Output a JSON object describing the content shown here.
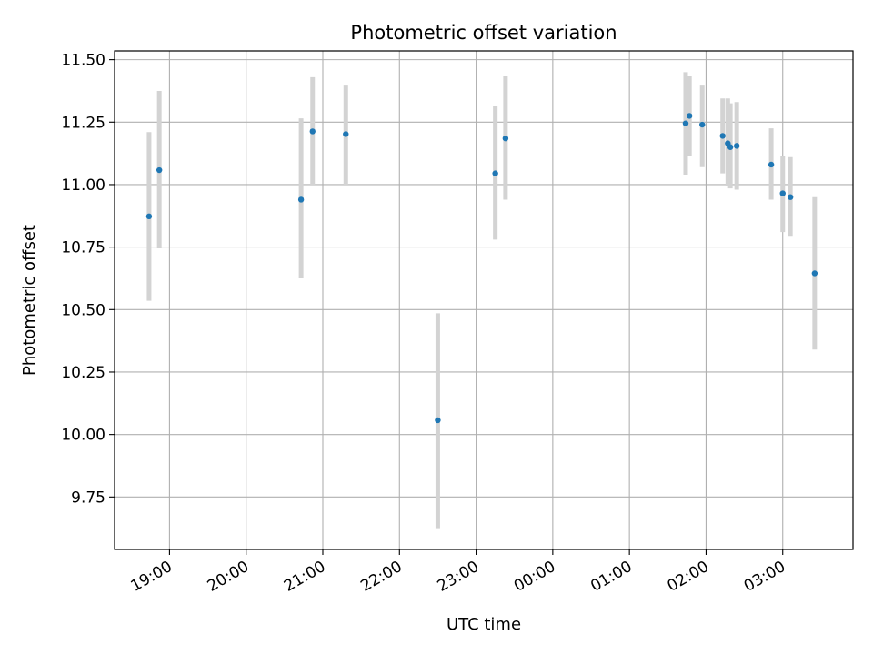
{
  "chart_data": {
    "type": "scatter",
    "title": "Photometric offset variation",
    "xlabel": "UTC time",
    "ylabel": "Photometric offset",
    "x_axis": "time (hours, UTC)",
    "xlim": [
      "18:17",
      "03:55"
    ],
    "ylim": [
      9.54,
      11.535
    ],
    "grid": true,
    "yticks": [
      9.75,
      10.0,
      10.25,
      10.5,
      10.75,
      11.0,
      11.25,
      11.5
    ],
    "ytick_labels": [
      "9.75",
      "10.00",
      "10.25",
      "10.50",
      "10.75",
      "11.00",
      "11.25",
      "11.50"
    ],
    "xticks": [
      "19:00",
      "20:00",
      "21:00",
      "22:00",
      "23:00",
      "00:00",
      "01:00",
      "02:00",
      "03:00"
    ],
    "xtick_labels": [
      "19:00",
      "20:00",
      "21:00",
      "22:00",
      "23:00",
      "00:00",
      "01:00",
      "02:00",
      "03:00"
    ],
    "marker_color": "#1f77b4",
    "errorbar_color": "#d3d3d3",
    "points": [
      {
        "x": "18:44",
        "y": 10.873,
        "ylo": 10.535,
        "yhi": 11.21
      },
      {
        "x": "18:52",
        "y": 11.058,
        "ylo": 10.745,
        "yhi": 11.375
      },
      {
        "x": "20:43",
        "y": 10.94,
        "ylo": 10.625,
        "yhi": 11.265
      },
      {
        "x": "20:52",
        "y": 11.213,
        "ylo": 11.0,
        "yhi": 11.43
      },
      {
        "x": "21:18",
        "y": 11.202,
        "ylo": 11.0,
        "yhi": 11.4
      },
      {
        "x": "22:30",
        "y": 10.057,
        "ylo": 9.625,
        "yhi": 10.485
      },
      {
        "x": "23:15",
        "y": 11.045,
        "ylo": 10.78,
        "yhi": 11.315
      },
      {
        "x": "23:23",
        "y": 11.185,
        "ylo": 10.94,
        "yhi": 11.435
      },
      {
        "x": "01:44",
        "y": 11.245,
        "ylo": 11.04,
        "yhi": 11.45
      },
      {
        "x": "01:47",
        "y": 11.275,
        "ylo": 11.115,
        "yhi": 11.435
      },
      {
        "x": "01:57",
        "y": 11.24,
        "ylo": 11.07,
        "yhi": 11.4
      },
      {
        "x": "02:13",
        "y": 11.195,
        "ylo": 11.045,
        "yhi": 11.345
      },
      {
        "x": "02:17",
        "y": 11.165,
        "ylo": 10.995,
        "yhi": 11.345
      },
      {
        "x": "02:19",
        "y": 11.15,
        "ylo": 10.985,
        "yhi": 11.325
      },
      {
        "x": "02:24",
        "y": 11.155,
        "ylo": 10.98,
        "yhi": 11.33
      },
      {
        "x": "02:51",
        "y": 11.08,
        "ylo": 10.94,
        "yhi": 11.225
      },
      {
        "x": "03:00",
        "y": 10.965,
        "ylo": 10.81,
        "yhi": 11.115
      },
      {
        "x": "03:06",
        "y": 10.95,
        "ylo": 10.795,
        "yhi": 11.11
      },
      {
        "x": "03:25",
        "y": 10.645,
        "ylo": 10.34,
        "yhi": 10.95
      }
    ]
  }
}
